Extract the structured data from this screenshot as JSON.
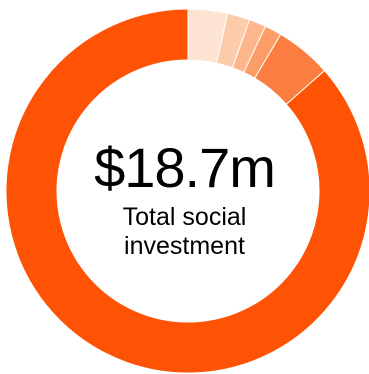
{
  "chart_data": {
    "type": "pie",
    "variant": "donut",
    "values": [
      3.5,
      2.0,
      1.5,
      1.5,
      5.0,
      86.5
    ],
    "colors": [
      "#FDE3D2",
      "#FCCBA9",
      "#FDB68C",
      "#FC9C67",
      "#FC7D40",
      "#FE5305"
    ],
    "center_value": "$18.7m",
    "center_caption_line1": "Total social",
    "center_caption_line2": "investment"
  }
}
